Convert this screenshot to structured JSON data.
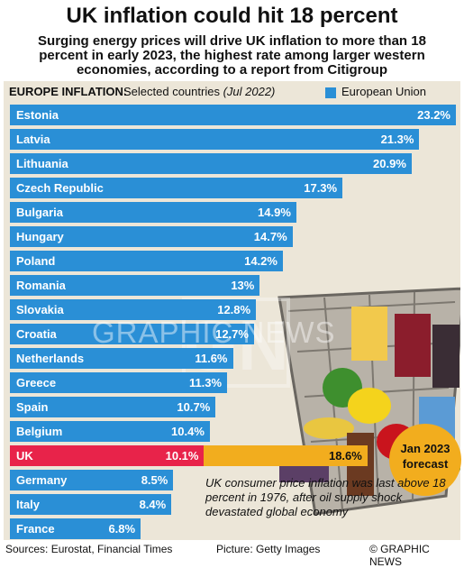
{
  "header": {
    "title": "UK inflation could hit 18 percent",
    "subtitle": "Surging energy prices will drive UK inflation to more than 18 percent in early 2023, the highest rate among larger western economies, according to a report from Citigroup"
  },
  "chart_data": {
    "type": "bar",
    "orientation": "horizontal",
    "title_bold": "EUROPE INFLATION:",
    "title_rest": "Selected countries",
    "title_period": "(Jul 2022)",
    "legend": "European Union",
    "unit": "%",
    "max_value": 23.2,
    "categories": [
      "Estonia",
      "Latvia",
      "Lithuania",
      "Czech Republic",
      "Bulgaria",
      "Hungary",
      "Poland",
      "Romania",
      "Slovakia",
      "Croatia",
      "Netherlands",
      "Greece",
      "Spain",
      "Belgium",
      "UK",
      "Germany",
      "Italy",
      "France"
    ],
    "values": [
      23.2,
      21.3,
      20.9,
      17.3,
      14.9,
      14.7,
      14.2,
      13,
      12.8,
      12.7,
      11.6,
      11.3,
      10.7,
      10.4,
      10.1,
      8.5,
      8.4,
      6.8
    ],
    "value_labels": [
      "23.2%",
      "21.3%",
      "20.9%",
      "17.3%",
      "14.9%",
      "14.7%",
      "14.2%",
      "13%",
      "12.8%",
      "12.7%",
      "11.6%",
      "11.3%",
      "10.7%",
      "10.4%",
      "10.1%",
      "8.5%",
      "8.4%",
      "6.8%"
    ],
    "series_colors": {
      "eu": "#2a8fd6",
      "uk": "#e8234a",
      "forecast": "#f2ad1e"
    },
    "highlight": "UK",
    "forecast": {
      "category": "UK",
      "value": 18.6,
      "label": "18.6%",
      "caption_line1": "Jan 2023",
      "caption_line2": "forecast"
    },
    "annotation": "UK consumer price inflation was last above 18 percent in 1976, after oil supply shock devastated global economy"
  },
  "footer": {
    "sources": "Sources: Eurostat, Financial Times",
    "picture": "Picture: Getty Images",
    "credit": "© GRAPHIC NEWS"
  },
  "watermark": {
    "letters": "GN",
    "text": "GRAPHIC NEWS"
  }
}
